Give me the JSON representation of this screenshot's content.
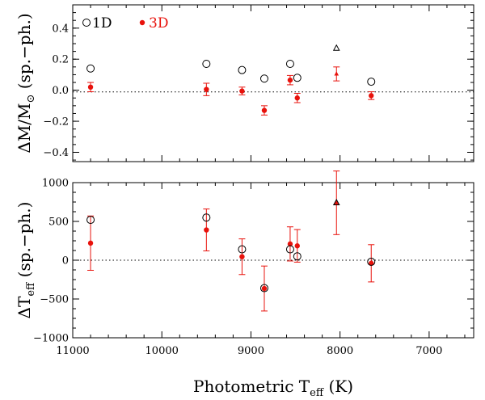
{
  "chart_data": {
    "type": "scatter",
    "shared_x": {
      "label": "Photometric T",
      "label_subscript": "eff",
      "label_unit": " (K)",
      "lim": [
        11000,
        6500
      ],
      "ticks": [
        11000,
        10000,
        9000,
        8000,
        7000
      ],
      "tick_labels": [
        "11000",
        "10000",
        "9000",
        "8000",
        "7000"
      ]
    },
    "legend": [
      {
        "symbol": "○",
        "label": "1D",
        "color": "#000000"
      },
      {
        "symbol": "●",
        "label": "3D",
        "color": "#e8120c"
      }
    ],
    "colors": {
      "oneD": "#000000",
      "threeD": "#e8120c",
      "errorbar": "#e8120c"
    },
    "panels": [
      {
        "name": "mass",
        "ylabel": "ΔM/M",
        "ylabel_subscript": "⊙",
        "ylabel_suffix": " (sp.−ph.)",
        "ylim": [
          -0.46,
          0.55
        ],
        "yticks": [
          -0.4,
          -0.2,
          0.0,
          0.2,
          0.4
        ],
        "ytick_labels": [
          "−0.4",
          "−0.2",
          "0.0",
          "0.2",
          "0.4"
        ],
        "series": [
          {
            "name": "1D",
            "points": [
              {
                "x": 10800,
                "y": 0.14,
                "marker": "circle"
              },
              {
                "x": 9500,
                "y": 0.17,
                "marker": "circle"
              },
              {
                "x": 9100,
                "y": 0.13,
                "marker": "circle"
              },
              {
                "x": 8850,
                "y": 0.075,
                "marker": "circle"
              },
              {
                "x": 8560,
                "y": 0.17,
                "marker": "circle"
              },
              {
                "x": 8480,
                "y": 0.08,
                "marker": "circle"
              },
              {
                "x": 8040,
                "y": 0.27,
                "marker": "triangle"
              },
              {
                "x": 7650,
                "y": 0.055,
                "marker": "circle"
              }
            ]
          },
          {
            "name": "3D",
            "points": [
              {
                "x": 10800,
                "y": 0.02,
                "err": 0.03,
                "marker": "dot"
              },
              {
                "x": 9500,
                "y": 0.005,
                "err": 0.04,
                "marker": "dot"
              },
              {
                "x": 9100,
                "y": -0.005,
                "err": 0.025,
                "marker": "dot"
              },
              {
                "x": 8850,
                "y": -0.13,
                "err": 0.03,
                "marker": "dot"
              },
              {
                "x": 8560,
                "y": 0.065,
                "err": 0.03,
                "marker": "dot"
              },
              {
                "x": 8480,
                "y": -0.05,
                "err": 0.03,
                "marker": "dot"
              },
              {
                "x": 8040,
                "y": 0.105,
                "err": 0.045,
                "marker": "tri-filled"
              },
              {
                "x": 7650,
                "y": -0.035,
                "err": 0.025,
                "marker": "dot"
              }
            ]
          }
        ]
      },
      {
        "name": "teff",
        "ylabel": "ΔT",
        "ylabel_subscript": "eff",
        "ylabel_suffix": " (sp.−ph.)",
        "ylim": [
          -1000,
          1000
        ],
        "yticks": [
          -1000,
          -500,
          0,
          500,
          1000
        ],
        "ytick_labels": [
          "−1000",
          "−500",
          "0",
          "500",
          "1000"
        ],
        "series": [
          {
            "name": "1D",
            "points": [
              {
                "x": 10800,
                "y": 520,
                "marker": "circle"
              },
              {
                "x": 9500,
                "y": 550,
                "marker": "circle"
              },
              {
                "x": 9100,
                "y": 140,
                "marker": "circle"
              },
              {
                "x": 8850,
                "y": -360,
                "marker": "circle"
              },
              {
                "x": 8560,
                "y": 140,
                "marker": "circle"
              },
              {
                "x": 8480,
                "y": 50,
                "marker": "circle"
              },
              {
                "x": 8040,
                "y": 740,
                "marker": "triangle"
              },
              {
                "x": 7650,
                "y": -20,
                "marker": "circle"
              }
            ]
          },
          {
            "name": "3D",
            "points": [
              {
                "x": 10800,
                "y": 220,
                "err": 350,
                "marker": "dot"
              },
              {
                "x": 9500,
                "y": 390,
                "err": 270,
                "marker": "dot"
              },
              {
                "x": 9100,
                "y": 45,
                "err": 230,
                "marker": "dot"
              },
              {
                "x": 8850,
                "y": -365,
                "err": 290,
                "marker": "dot"
              },
              {
                "x": 8560,
                "y": 210,
                "err": 220,
                "marker": "dot"
              },
              {
                "x": 8480,
                "y": 185,
                "err": 210,
                "marker": "dot"
              },
              {
                "x": 8040,
                "y": 740,
                "err": 410,
                "marker": "tri-filled"
              },
              {
                "x": 7650,
                "y": -40,
                "err": 240,
                "marker": "dot"
              }
            ]
          }
        ]
      }
    ]
  }
}
